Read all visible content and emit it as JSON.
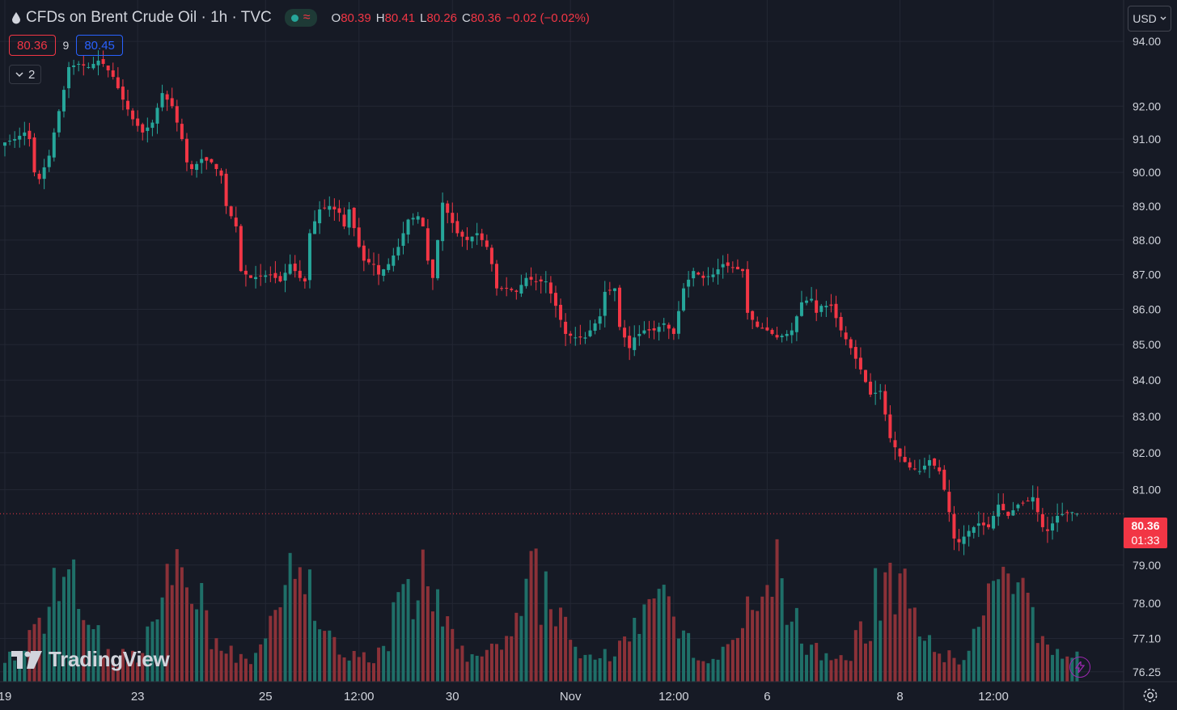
{
  "header": {
    "symbol_title": "CFDs on Brent Crude Oil · 1h · TVC",
    "ohlc": {
      "open_label": "O",
      "open": "80.39",
      "high_label": "H",
      "high": "80.41",
      "low_label": "L",
      "low": "80.26",
      "close_label": "C",
      "close": "80.36",
      "change": "−0.02 (−0.02%)"
    },
    "bid": "80.36",
    "spread": "9",
    "ask": "80.45",
    "indicators_collapsed_count": "2",
    "currency": "USD"
  },
  "price_tag": {
    "price": "80.36",
    "countdown": "01:33"
  },
  "watermark": "TradingView",
  "colors": {
    "background": "#161a25",
    "grid": "#232734",
    "up": "#26a69a",
    "down": "#f23645",
    "up_volume": "#1f6f68",
    "down_volume": "#8b3138",
    "text": "#d1d4dc"
  },
  "chart_data": {
    "type": "candlestick",
    "symbol": "Brent Crude Oil",
    "interval": "1h",
    "y_axis_ticks": [
      "94.00",
      "92.00",
      "91.00",
      "90.00",
      "89.00",
      "88.00",
      "87.00",
      "86.00",
      "85.00",
      "84.00",
      "83.00",
      "82.00",
      "81.00",
      "79.00",
      "78.00",
      "77.10",
      "76.25"
    ],
    "y_axis_scale": "log",
    "ylim": [
      76.0,
      95.3
    ],
    "x_axis_ticks": [
      {
        "label": "19",
        "at": 0
      },
      {
        "label": "23",
        "at": 27
      },
      {
        "label": "25",
        "at": 53
      },
      {
        "label": "12:00",
        "at": 72
      },
      {
        "label": "30",
        "at": 91
      },
      {
        "label": "Nov",
        "at": 115
      },
      {
        "label": "12:00",
        "at": 136
      },
      {
        "label": "6",
        "at": 155
      },
      {
        "label": "8",
        "at": 182
      },
      {
        "label": "12:00",
        "at": 201
      }
    ],
    "x_range": [
      0,
      219
    ],
    "last_price": 80.36,
    "anchors": [
      [
        0,
        90.9
      ],
      [
        2,
        91.0
      ],
      [
        4,
        91.2
      ],
      [
        5,
        91.0
      ],
      [
        6,
        90.0
      ],
      [
        7,
        89.8
      ],
      [
        9,
        90.5
      ],
      [
        10,
        91.2
      ],
      [
        12,
        92.5
      ],
      [
        13,
        93.2
      ],
      [
        15,
        93.3
      ],
      [
        17,
        93.2
      ],
      [
        19,
        93.4
      ],
      [
        20,
        93.3
      ],
      [
        22,
        92.9
      ],
      [
        24,
        92.2
      ],
      [
        26,
        91.6
      ],
      [
        28,
        91.2
      ],
      [
        30,
        91.5
      ],
      [
        32,
        92.4
      ],
      [
        34,
        92.0
      ],
      [
        36,
        91.0
      ],
      [
        37,
        90.3
      ],
      [
        38,
        90.1
      ],
      [
        40,
        90.4
      ],
      [
        42,
        90.3
      ],
      [
        44,
        89.9
      ],
      [
        45,
        89.0
      ],
      [
        47,
        88.4
      ],
      [
        48,
        87.1
      ],
      [
        50,
        86.9
      ],
      [
        54,
        87.0
      ],
      [
        56,
        86.8
      ],
      [
        58,
        87.3
      ],
      [
        60,
        86.9
      ],
      [
        61,
        86.8
      ],
      [
        62,
        88.2
      ],
      [
        64,
        88.9
      ],
      [
        66,
        89.0
      ],
      [
        68,
        88.8
      ],
      [
        69,
        88.4
      ],
      [
        70,
        88.9
      ],
      [
        72,
        87.8
      ],
      [
        73,
        87.4
      ],
      [
        75,
        87.3
      ],
      [
        76,
        87.0
      ],
      [
        78,
        87.3
      ],
      [
        80,
        87.8
      ],
      [
        82,
        88.6
      ],
      [
        84,
        88.7
      ],
      [
        85,
        88.4
      ],
      [
        86,
        87.4
      ],
      [
        87,
        86.9
      ],
      [
        89,
        89.1
      ],
      [
        90,
        88.8
      ],
      [
        92,
        88.2
      ],
      [
        94,
        88.0
      ],
      [
        96,
        88.2
      ],
      [
        98,
        87.8
      ],
      [
        99,
        87.3
      ],
      [
        100,
        86.6
      ],
      [
        102,
        86.6
      ],
      [
        104,
        86.5
      ],
      [
        106,
        86.9
      ],
      [
        108,
        86.8
      ],
      [
        110,
        86.8
      ],
      [
        112,
        86.1
      ],
      [
        114,
        85.3
      ],
      [
        116,
        85.2
      ],
      [
        118,
        85.2
      ],
      [
        120,
        85.6
      ],
      [
        121,
        85.8
      ],
      [
        122,
        86.5
      ],
      [
        124,
        86.6
      ],
      [
        125,
        85.5
      ],
      [
        127,
        84.9
      ],
      [
        128,
        85.2
      ],
      [
        130,
        85.4
      ],
      [
        132,
        85.4
      ],
      [
        134,
        85.6
      ],
      [
        136,
        85.3
      ],
      [
        138,
        86.6
      ],
      [
        140,
        87.1
      ],
      [
        142,
        86.9
      ],
      [
        144,
        87.0
      ],
      [
        146,
        87.3
      ],
      [
        148,
        87.2
      ],
      [
        150,
        87.1
      ],
      [
        151,
        85.9
      ],
      [
        153,
        85.5
      ],
      [
        155,
        85.4
      ],
      [
        157,
        85.2
      ],
      [
        159,
        85.3
      ],
      [
        160,
        85.4
      ],
      [
        162,
        86.2
      ],
      [
        164,
        86.3
      ],
      [
        165,
        85.9
      ],
      [
        166,
        86.1
      ],
      [
        168,
        86.1
      ],
      [
        170,
        85.4
      ],
      [
        172,
        84.9
      ],
      [
        174,
        84.3
      ],
      [
        176,
        83.6
      ],
      [
        178,
        83.7
      ],
      [
        180,
        82.4
      ],
      [
        182,
        81.9
      ],
      [
        184,
        81.6
      ],
      [
        186,
        81.5
      ],
      [
        188,
        81.8
      ],
      [
        190,
        81.5
      ],
      [
        191,
        81.0
      ],
      [
        192,
        80.4
      ],
      [
        193,
        79.7
      ],
      [
        194,
        79.6
      ],
      [
        196,
        79.9
      ],
      [
        198,
        80.1
      ],
      [
        200,
        80.0
      ],
      [
        202,
        80.6
      ],
      [
        204,
        80.3
      ],
      [
        206,
        80.6
      ],
      [
        208,
        80.7
      ],
      [
        209,
        80.8
      ],
      [
        210,
        80.4
      ],
      [
        211,
        80.0
      ],
      [
        212,
        79.9
      ],
      [
        214,
        80.3
      ],
      [
        216,
        80.4
      ],
      [
        217,
        80.4
      ],
      [
        218,
        80.36
      ]
    ]
  }
}
